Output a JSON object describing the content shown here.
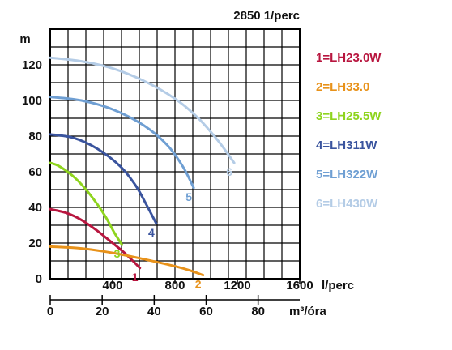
{
  "chart_data": {
    "type": "line",
    "title": "2850 1/perc",
    "ylabel": "m",
    "xlabel_top": "l/perc",
    "xlabel_bottom": "m³/óra",
    "ylim": [
      0,
      140
    ],
    "xlim_lpm": [
      0,
      1600
    ],
    "x_ticks_lpm": [
      400,
      800,
      1200,
      1600
    ],
    "x_tick_labels_lpm": [
      "400",
      "800",
      "1200",
      "1600"
    ],
    "x_ticks_m3h": [
      0,
      20,
      40,
      60,
      80
    ],
    "x_tick_labels_m3h": [
      "0",
      "20",
      "40",
      "60",
      "80"
    ],
    "y_ticks": [
      0,
      20,
      40,
      60,
      80,
      100,
      120
    ],
    "y_tick_labels": [
      "0",
      "20",
      "40",
      "60",
      "80",
      "100",
      "120"
    ],
    "grid": true,
    "legend_position": "right",
    "series": [
      {
        "name": "1=LH23.0W",
        "curve_label": "1",
        "color": "#b8163f",
        "x": [
          0,
          100,
          200,
          300,
          400,
          470,
          530,
          575
        ],
        "y": [
          39,
          37,
          33,
          27,
          20,
          15,
          10,
          6
        ]
      },
      {
        "name": "2=LH33.0",
        "curve_label": "2",
        "color": "#e8921a",
        "x": [
          0,
          200,
          400,
          600,
          800,
          900,
          980
        ],
        "y": [
          18,
          17,
          14.5,
          11,
          7,
          4.5,
          2
        ]
      },
      {
        "name": "3=LH25.5W",
        "curve_label": "3",
        "color": "#8ed41e",
        "x": [
          0,
          60,
          140,
          220,
          300,
          360,
          410,
          460
        ],
        "y": [
          65,
          63,
          58,
          51,
          42,
          34,
          26,
          19
        ]
      },
      {
        "name": "4=LH311W",
        "curve_label": "4",
        "color": "#3a549e",
        "x": [
          0,
          150,
          300,
          450,
          550,
          620,
          680
        ],
        "y": [
          81,
          79,
          73,
          63,
          52,
          41,
          31
        ]
      },
      {
        "name": "5=LH322W",
        "curve_label": "5",
        "color": "#6f9fd3",
        "x": [
          0,
          200,
          400,
          600,
          750,
          850,
          920
        ],
        "y": [
          102,
          100,
          95,
          86,
          75,
          63,
          51
        ]
      },
      {
        "name": "6=LH430W",
        "curve_label": "6",
        "color": "#b4cce6",
        "x": [
          0,
          200,
          400,
          600,
          800,
          950,
          1080,
          1180
        ],
        "y": [
          124,
          122,
          118,
          111,
          101,
          90,
          77,
          65
        ]
      }
    ]
  }
}
